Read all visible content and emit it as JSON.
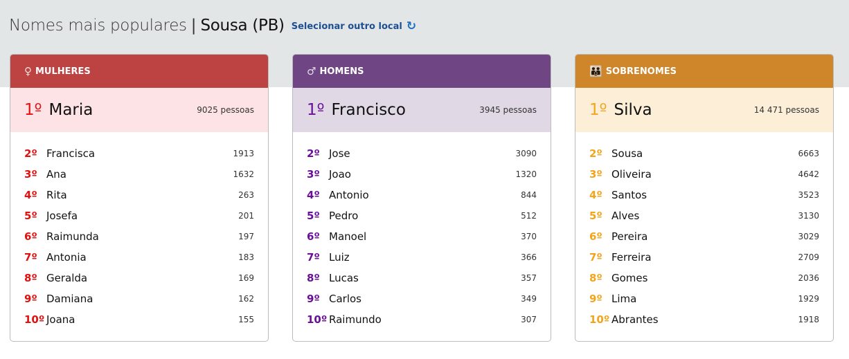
{
  "header": {
    "title": "Nomes mais populares",
    "separator": "|",
    "location": "Sousa (PB)",
    "change_location": "Selecionar outro local",
    "refresh_icon": "↻"
  },
  "cards": [
    {
      "title": "MULHERES",
      "icon": "♀",
      "color": "#bd4343",
      "light": "#fde3e5",
      "rank_color": "#e31010",
      "top": {
        "rank": "1º",
        "name": "Maria",
        "count": "9025 pessoas"
      },
      "items": [
        {
          "rank": "2º",
          "name": "Francisca",
          "count": "1913"
        },
        {
          "rank": "3º",
          "name": "Ana",
          "count": "1632"
        },
        {
          "rank": "4º",
          "name": "Rita",
          "count": "263"
        },
        {
          "rank": "5º",
          "name": "Josefa",
          "count": "201"
        },
        {
          "rank": "6º",
          "name": "Raimunda",
          "count": "197"
        },
        {
          "rank": "7º",
          "name": "Antonia",
          "count": "183"
        },
        {
          "rank": "8º",
          "name": "Geralda",
          "count": "169"
        },
        {
          "rank": "9º",
          "name": "Damiana",
          "count": "162"
        },
        {
          "rank": "10º",
          "name": "Joana",
          "count": "155"
        }
      ]
    },
    {
      "title": "HOMENS",
      "icon": "♂",
      "color": "#6f4584",
      "light": "#e0d8e5",
      "rank_color": "#6a0f9a",
      "top": {
        "rank": "1º",
        "name": "Francisco",
        "count": "3945 pessoas"
      },
      "items": [
        {
          "rank": "2º",
          "name": "Jose",
          "count": "3090"
        },
        {
          "rank": "3º",
          "name": "Joao",
          "count": "1320"
        },
        {
          "rank": "4º",
          "name": "Antonio",
          "count": "844"
        },
        {
          "rank": "5º",
          "name": "Pedro",
          "count": "512"
        },
        {
          "rank": "6º",
          "name": "Manoel",
          "count": "370"
        },
        {
          "rank": "7º",
          "name": "Luiz",
          "count": "366"
        },
        {
          "rank": "8º",
          "name": "Lucas",
          "count": "357"
        },
        {
          "rank": "9º",
          "name": "Carlos",
          "count": "349"
        },
        {
          "rank": "10º",
          "name": "Raimundo",
          "count": "307"
        }
      ]
    },
    {
      "title": "SOBRENOMES",
      "icon": "👪",
      "color": "#cf852a",
      "light": "#fdeed7",
      "rank_color": "#f2a51a",
      "top": {
        "rank": "1º",
        "name": "Silva",
        "count": "14 471 pessoas"
      },
      "items": [
        {
          "rank": "2º",
          "name": "Sousa",
          "count": "6663"
        },
        {
          "rank": "3º",
          "name": "Oliveira",
          "count": "4642"
        },
        {
          "rank": "4º",
          "name": "Santos",
          "count": "3523"
        },
        {
          "rank": "5º",
          "name": "Alves",
          "count": "3130"
        },
        {
          "rank": "6º",
          "name": "Pereira",
          "count": "3029"
        },
        {
          "rank": "7º",
          "name": "Ferreira",
          "count": "2709"
        },
        {
          "rank": "8º",
          "name": "Gomes",
          "count": "2036"
        },
        {
          "rank": "9º",
          "name": "Lima",
          "count": "1929"
        },
        {
          "rank": "10º",
          "name": "Abrantes",
          "count": "1918"
        }
      ]
    }
  ]
}
